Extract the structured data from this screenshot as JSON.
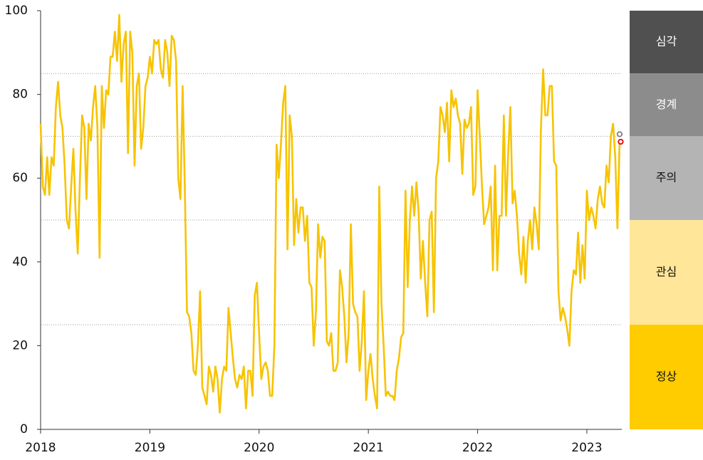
{
  "chart_data": {
    "type": "line",
    "x": [
      2018,
      2018.02,
      2018.04,
      2018.06,
      2018.08,
      2018.1,
      2018.12,
      2018.14,
      2018.16,
      2018.18,
      2018.2,
      2018.22,
      2018.24,
      2018.26,
      2018.28,
      2018.3,
      2018.32,
      2018.34,
      2018.36,
      2018.38,
      2018.4,
      2018.42,
      2018.44,
      2018.46,
      2018.48,
      2018.5,
      2018.52,
      2018.54,
      2018.56,
      2018.58,
      2018.6,
      2018.62,
      2018.64,
      2018.66,
      2018.68,
      2018.7,
      2018.72,
      2018.74,
      2018.76,
      2018.78,
      2018.8,
      2018.82,
      2018.84,
      2018.86,
      2018.88,
      2018.9,
      2018.92,
      2018.94,
      2018.96,
      2018.98,
      2019,
      2019.02,
      2019.04,
      2019.06,
      2019.08,
      2019.1,
      2019.12,
      2019.14,
      2019.16,
      2019.18,
      2019.2,
      2019.22,
      2019.24,
      2019.26,
      2019.28,
      2019.3,
      2019.32,
      2019.34,
      2019.36,
      2019.38,
      2019.4,
      2019.42,
      2019.44,
      2019.46,
      2019.48,
      2019.5,
      2019.52,
      2019.54,
      2019.56,
      2019.58,
      2019.6,
      2019.62,
      2019.64,
      2019.66,
      2019.68,
      2019.7,
      2019.72,
      2019.74,
      2019.76,
      2019.78,
      2019.8,
      2019.82,
      2019.84,
      2019.86,
      2019.88,
      2019.9,
      2019.92,
      2019.94,
      2019.96,
      2019.98,
      2020,
      2020.02,
      2020.04,
      2020.06,
      2020.08,
      2020.1,
      2020.12,
      2020.14,
      2020.16,
      2020.18,
      2020.2,
      2020.22,
      2020.24,
      2020.26,
      2020.28,
      2020.3,
      2020.32,
      2020.34,
      2020.36,
      2020.38,
      2020.4,
      2020.42,
      2020.44,
      2020.46,
      2020.48,
      2020.5,
      2020.52,
      2020.54,
      2020.56,
      2020.58,
      2020.6,
      2020.62,
      2020.64,
      2020.66,
      2020.68,
      2020.7,
      2020.72,
      2020.74,
      2020.76,
      2020.78,
      2020.8,
      2020.82,
      2020.84,
      2020.86,
      2020.88,
      2020.9,
      2020.92,
      2020.94,
      2020.96,
      2020.98,
      2021,
      2021.02,
      2021.04,
      2021.06,
      2021.08,
      2021.1,
      2021.12,
      2021.14,
      2021.16,
      2021.18,
      2021.2,
      2021.22,
      2021.24,
      2021.26,
      2021.28,
      2021.3,
      2021.32,
      2021.34,
      2021.36,
      2021.38,
      2021.4,
      2021.42,
      2021.44,
      2021.46,
      2021.48,
      2021.5,
      2021.52,
      2021.54,
      2021.56,
      2021.58,
      2021.6,
      2021.62,
      2021.64,
      2021.66,
      2021.68,
      2021.7,
      2021.72,
      2021.74,
      2021.76,
      2021.78,
      2021.8,
      2021.82,
      2021.84,
      2021.86,
      2021.88,
      2021.9,
      2021.92,
      2021.94,
      2021.96,
      2021.98,
      2022,
      2022.02,
      2022.04,
      2022.06,
      2022.08,
      2022.1,
      2022.12,
      2022.14,
      2022.16,
      2022.18,
      2022.2,
      2022.22,
      2022.24,
      2022.26,
      2022.28,
      2022.3,
      2022.32,
      2022.34,
      2022.36,
      2022.38,
      2022.4,
      2022.42,
      2022.44,
      2022.46,
      2022.48,
      2022.5,
      2022.52,
      2022.54,
      2022.56,
      2022.58,
      2022.6,
      2022.62,
      2022.64,
      2022.66,
      2022.68,
      2022.7,
      2022.72,
      2022.74,
      2022.76,
      2022.78,
      2022.8,
      2022.82,
      2022.84,
      2022.86,
      2022.88,
      2022.9,
      2022.92,
      2022.94,
      2022.96,
      2022.98,
      2023,
      2023.02,
      2023.04,
      2023.06,
      2023.08,
      2023.1,
      2023.12,
      2023.14,
      2023.16,
      2023.18,
      2023.2,
      2023.22,
      2023.24,
      2023.26,
      2023.28,
      2023.3
    ],
    "series": [
      {
        "color": "#f7c300",
        "values": [
          73,
          58,
          56,
          65,
          56,
          65,
          63,
          77,
          83,
          75,
          72,
          63,
          50,
          48,
          58,
          67,
          52,
          42,
          60,
          75,
          72,
          55,
          73,
          69,
          77,
          82,
          72,
          41,
          82,
          72,
          81,
          80,
          89,
          89,
          95,
          88,
          99,
          83,
          92,
          95,
          66,
          95,
          90,
          63,
          82,
          85,
          67,
          72,
          82,
          84,
          89,
          85,
          93,
          92,
          93,
          86,
          84,
          93,
          90,
          82,
          94,
          93,
          88,
          60,
          55,
          82,
          58,
          28,
          27,
          23,
          14,
          13,
          20,
          33,
          10,
          8,
          6,
          15,
          13,
          9,
          15,
          12,
          4,
          12,
          15,
          14,
          29,
          23,
          17,
          12,
          10,
          13,
          12,
          15,
          5,
          14,
          14,
          8,
          32,
          35,
          23,
          12,
          15,
          16,
          14,
          8,
          8,
          20,
          68,
          60,
          68,
          78,
          82,
          43,
          75,
          70,
          44,
          55,
          47,
          53,
          53,
          45,
          51,
          35,
          34,
          20,
          28,
          49,
          41,
          46,
          45,
          21,
          20,
          23,
          14,
          14,
          16,
          38,
          34,
          27,
          16,
          23,
          49,
          30,
          28,
          27,
          14,
          21,
          33,
          7,
          14,
          18,
          12,
          8,
          5,
          58,
          30,
          20,
          8,
          9,
          8,
          8,
          7,
          14,
          17,
          22,
          23,
          57,
          34,
          50,
          58,
          51,
          59,
          52,
          36,
          45,
          35,
          27,
          50,
          52,
          28,
          60,
          64,
          77,
          75,
          71,
          78,
          64,
          81,
          77,
          79,
          75,
          73,
          61,
          74,
          72,
          73,
          77,
          56,
          58,
          81,
          70,
          58,
          49,
          51,
          53,
          58,
          38,
          63,
          38,
          51,
          51,
          75,
          51,
          66,
          77,
          54,
          57,
          51,
          42,
          37,
          46,
          35,
          45,
          50,
          43,
          53,
          49,
          43,
          72,
          86,
          75,
          75,
          82,
          82,
          64,
          63,
          33,
          26,
          29,
          27,
          24,
          20,
          33,
          38,
          37,
          47,
          35,
          44,
          36,
          57,
          50,
          53,
          51,
          48,
          55,
          58,
          54,
          53,
          63,
          59,
          70,
          73,
          65,
          48,
          69
        ]
      }
    ],
    "markers": [
      {
        "x": 2023.3,
        "value": 70.5,
        "color": "#808080"
      },
      {
        "x": 2023.31,
        "value": 68.7,
        "color": "#e60000"
      }
    ],
    "xlim": [
      2018,
      2023.32
    ],
    "xticks": [
      2018,
      2019,
      2020,
      2021,
      2022,
      2023
    ],
    "ylim": [
      0,
      100
    ],
    "yticks": [
      0,
      20,
      40,
      60,
      80,
      100
    ],
    "bands": [
      {
        "label": "심각",
        "from": 85,
        "to": 100,
        "color": "#505050"
      },
      {
        "label": "경계",
        "from": 70,
        "to": 85,
        "color": "#8c8c8c"
      },
      {
        "label": "주의",
        "from": 50,
        "to": 70,
        "color": "#b4b4b4"
      },
      {
        "label": "관심",
        "from": 25,
        "to": 50,
        "color": "#ffe699"
      },
      {
        "label": "정상",
        "from": 0,
        "to": 25,
        "color": "#ffcc00"
      }
    ]
  }
}
